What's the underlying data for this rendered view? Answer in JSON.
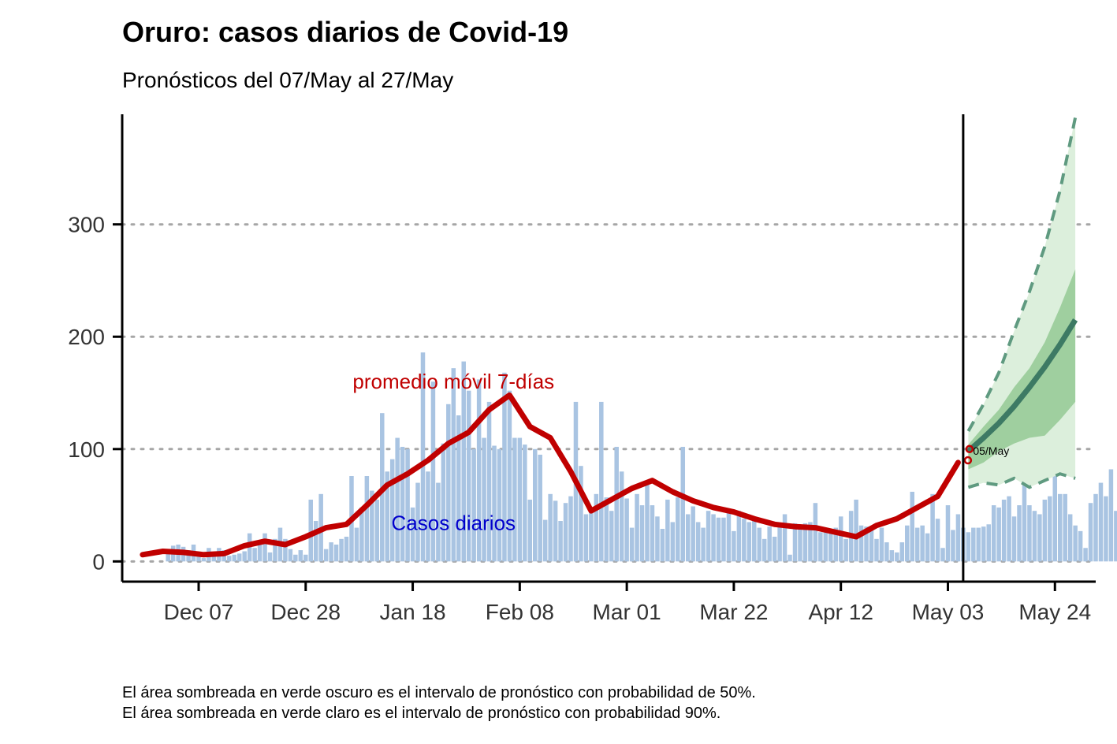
{
  "title": "Oruro: casos diarios de Covid-19",
  "subtitle": "Pronósticos del 07/May al 27/May",
  "caption_lines": [
    "El área sombreada en verde oscuro es el intervalo de pronóstico con probabilidad de 50%.",
    "El área sombreada en verde claro es el intervalo de pronóstico con probabilidad 90%."
  ],
  "colors": {
    "bars": "#a9c4e2",
    "moving_average": "#c00000",
    "forecast_median": "#3d7a64",
    "band_50": "#9fcf9f",
    "band_90": "#dcefdc",
    "band_90_edge": "#5f9a80",
    "grid": "#a6a6a6",
    "bar_label": "#0000cc"
  },
  "chart_data": {
    "type": "bar",
    "x_axis": {
      "type": "date",
      "ticks": [
        "2020-12-07",
        "2020-12-28",
        "2021-01-18",
        "2021-02-08",
        "2021-03-01",
        "2021-03-22",
        "2021-04-12",
        "2021-05-03",
        "2021-05-24"
      ],
      "tick_labels": [
        "Dec 07",
        "Dec 28",
        "Jan 18",
        "Feb 08",
        "Mar 01",
        "Mar 22",
        "Apr 12",
        "May 03",
        "May 24"
      ],
      "range": [
        "2020-11-22",
        "2021-06-01"
      ]
    },
    "y_axis": {
      "ticks": [
        0,
        100,
        200,
        300
      ],
      "range": [
        -18,
        398
      ],
      "grid": "dotted horizontal"
    },
    "vline_date": "2021-05-06",
    "annotations": [
      {
        "text": "promedio móvil 7-días",
        "date": "2021-01-26",
        "y": 154,
        "color": "#c00000"
      },
      {
        "text": "Casos diarios",
        "date": "2021-01-26",
        "y": 28,
        "color": "#0000cc"
      },
      {
        "text": "05/May",
        "date": "2021-05-07",
        "y": 95,
        "color": "#000000"
      }
    ],
    "series": [
      {
        "name": "Casos diarios",
        "type": "bar",
        "start_date": "2020-12-01",
        "values": [
          8,
          14,
          15,
          13,
          10,
          15,
          6,
          3,
          12,
          7,
          12,
          10,
          5,
          6,
          7,
          9,
          25,
          12,
          15,
          25,
          8,
          20,
          30,
          20,
          11,
          6,
          10,
          6,
          55,
          36,
          60,
          11,
          17,
          15,
          20,
          22,
          76,
          30,
          48,
          76,
          63,
          55,
          132,
          80,
          91,
          110,
          102,
          100,
          48,
          70,
          186,
          80,
          160,
          70,
          105,
          140,
          172,
          130,
          178,
          152,
          100,
          162,
          110,
          142,
          103,
          100,
          168,
          152,
          110,
          110,
          104,
          55,
          100,
          95,
          37,
          60,
          54,
          36,
          52,
          58,
          142,
          85,
          42,
          48,
          60,
          142,
          57,
          45,
          102,
          80,
          56,
          30,
          60,
          50,
          70,
          50,
          40,
          29,
          55,
          35,
          57,
          102,
          42,
          49,
          35,
          30,
          45,
          42,
          39,
          39,
          47,
          27,
          45,
          38,
          35,
          38,
          30,
          20,
          31,
          22,
          33,
          42,
          6,
          34,
          29,
          34,
          35,
          52,
          26,
          30,
          27,
          30,
          40,
          20,
          45,
          55,
          32,
          31,
          29,
          20,
          30,
          17,
          10,
          8,
          17,
          32,
          62,
          30,
          32,
          25,
          60,
          38,
          12,
          50,
          28,
          42,
          30,
          26,
          30,
          30,
          31,
          33,
          50,
          48,
          55,
          58,
          40,
          50,
          68,
          50,
          45,
          42,
          55,
          58,
          80,
          60,
          60,
          42,
          32,
          27,
          12,
          52,
          60,
          70,
          58,
          82,
          45,
          55,
          52,
          40,
          45,
          36,
          32,
          66,
          45,
          60,
          62,
          78,
          72,
          67,
          85,
          92,
          88,
          45,
          82,
          104,
          66,
          40,
          74,
          82,
          90,
          30,
          94,
          134
        ]
      },
      {
        "name": "promedio móvil 7-días",
        "type": "line",
        "dates": [
          "2020-11-26",
          "2020-11-30",
          "2020-12-04",
          "2020-12-08",
          "2020-12-12",
          "2020-12-16",
          "2020-12-20",
          "2020-12-24",
          "2020-12-28",
          "2021-01-01",
          "2021-01-05",
          "2021-01-09",
          "2021-01-13",
          "2021-01-17",
          "2021-01-21",
          "2021-01-25",
          "2021-01-29",
          "2021-02-02",
          "2021-02-06",
          "2021-02-10",
          "2021-02-14",
          "2021-02-18",
          "2021-02-22",
          "2021-02-26",
          "2021-03-02",
          "2021-03-06",
          "2021-03-10",
          "2021-03-14",
          "2021-03-18",
          "2021-03-22",
          "2021-03-26",
          "2021-03-30",
          "2021-04-03",
          "2021-04-07",
          "2021-04-11",
          "2021-04-15",
          "2021-04-19",
          "2021-04-23",
          "2021-04-27",
          "2021-05-01",
          "2021-05-05"
        ],
        "values": [
          6,
          9,
          8,
          6,
          7,
          14,
          18,
          15,
          22,
          30,
          33,
          50,
          68,
          78,
          90,
          105,
          115,
          135,
          148,
          120,
          110,
          80,
          45,
          55,
          65,
          72,
          62,
          54,
          48,
          44,
          38,
          33,
          31,
          30,
          26,
          22,
          32,
          38,
          48,
          58,
          88
        ]
      },
      {
        "name": "Pronóstico (mediana)",
        "type": "line",
        "dates": [
          "2021-05-07",
          "2021-05-10",
          "2021-05-13",
          "2021-05-16",
          "2021-05-19",
          "2021-05-22",
          "2021-05-25",
          "2021-05-28"
        ],
        "values": [
          98,
          110,
          123,
          138,
          155,
          173,
          193,
          215
        ]
      },
      {
        "name": "Intervalo 50% inferior",
        "type": "area",
        "dates": [
          "2021-05-07",
          "2021-05-10",
          "2021-05-13",
          "2021-05-16",
          "2021-05-19",
          "2021-05-22",
          "2021-05-25",
          "2021-05-28"
        ],
        "values": [
          82,
          88,
          98,
          105,
          110,
          112,
          126,
          142
        ]
      },
      {
        "name": "Intervalo 50% superior",
        "type": "area",
        "dates": [
          "2021-05-07",
          "2021-05-10",
          "2021-05-13",
          "2021-05-16",
          "2021-05-19",
          "2021-05-22",
          "2021-05-25",
          "2021-05-28"
        ],
        "values": [
          104,
          120,
          135,
          155,
          172,
          195,
          226,
          260
        ]
      },
      {
        "name": "Intervalo 90% inferior",
        "type": "area",
        "dates": [
          "2021-05-07",
          "2021-05-10",
          "2021-05-13",
          "2021-05-16",
          "2021-05-19",
          "2021-05-22",
          "2021-05-25",
          "2021-05-28"
        ],
        "values": [
          66,
          70,
          68,
          74,
          66,
          72,
          78,
          74
        ]
      },
      {
        "name": "Intervalo 90% superior",
        "type": "area",
        "dates": [
          "2021-05-07",
          "2021-05-10",
          "2021-05-13",
          "2021-05-16",
          "2021-05-19",
          "2021-05-22",
          "2021-05-25",
          "2021-05-28"
        ],
        "values": [
          116,
          140,
          168,
          205,
          240,
          280,
          330,
          395
        ]
      }
    ]
  }
}
